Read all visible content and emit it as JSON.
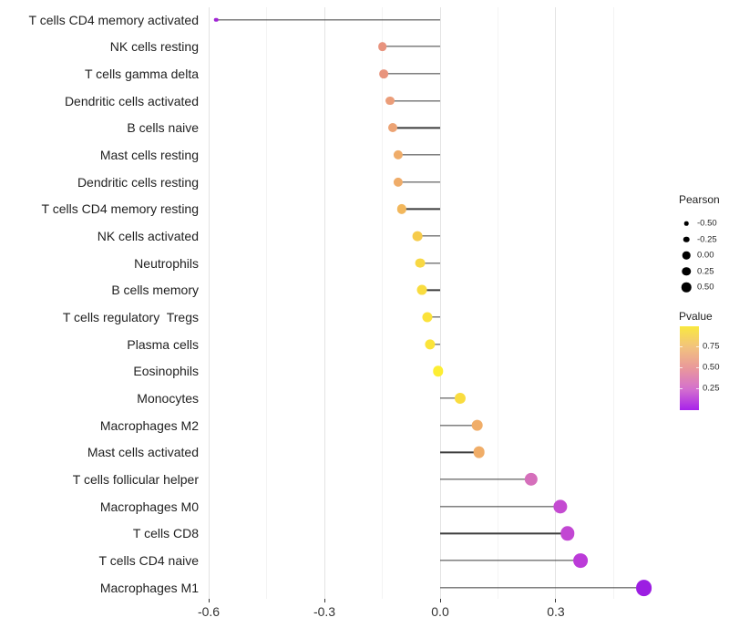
{
  "chart_data": {
    "type": "lollipop",
    "title": "",
    "xlabel": "",
    "ylabel": "",
    "x_tick_labels": [
      "-0.6",
      "-0.3",
      "0.0",
      "0.3"
    ],
    "x_ticks": [
      -0.6,
      -0.3,
      0.0,
      0.3
    ],
    "x_minor_ticks": [
      -0.45,
      -0.15,
      0.15,
      0.45
    ],
    "xlim": [
      -0.635,
      0.585
    ],
    "grid": "vertical-only",
    "legend_position": "right",
    "rows": [
      {
        "label": "T cells CD4 memory activated",
        "pearson": -0.58,
        "pvalue_color": "#A224D6"
      },
      {
        "label": "NK cells resting",
        "pearson": -0.15,
        "pvalue_color": "#E8937E"
      },
      {
        "label": "T cells gamma delta",
        "pearson": -0.147,
        "pvalue_color": "#E8947D"
      },
      {
        "label": "Dendritic cells activated",
        "pearson": -0.13,
        "pvalue_color": "#EB9D79"
      },
      {
        "label": "B cells naive",
        "pearson": -0.124,
        "pvalue_color": "#ECA374"
      },
      {
        "label": "Mast cells resting",
        "pearson": -0.108,
        "pvalue_color": "#EFAC69"
      },
      {
        "label": "Dendritic cells resting",
        "pearson": -0.108,
        "pvalue_color": "#EFAC69"
      },
      {
        "label": "T cells CD4 memory resting",
        "pearson": -0.1,
        "pvalue_color": "#F2B75C"
      },
      {
        "label": "NK cells activated",
        "pearson": -0.059,
        "pvalue_color": "#F6CB4B"
      },
      {
        "label": "Neutrophils",
        "pearson": -0.051,
        "pvalue_color": "#F8D843"
      },
      {
        "label": "B cells memory",
        "pearson": -0.048,
        "pvalue_color": "#F9DC3F"
      },
      {
        "label": "T cells regulatory  Tregs",
        "pearson": -0.034,
        "pvalue_color": "#FBE23A"
      },
      {
        "label": "Plasma cells",
        "pearson": -0.027,
        "pvalue_color": "#FBE43A"
      },
      {
        "label": "Eosinophils",
        "pearson": -0.005,
        "pvalue_color": "#FDEE33"
      },
      {
        "label": "Monocytes",
        "pearson": 0.051,
        "pvalue_color": "#F9DC3F"
      },
      {
        "label": "Macrophages M2",
        "pearson": 0.096,
        "pvalue_color": "#F0AD68"
      },
      {
        "label": "Mast cells activated",
        "pearson": 0.101,
        "pvalue_color": "#F0AD68"
      },
      {
        "label": "T cells follicular helper",
        "pearson": 0.236,
        "pvalue_color": "#D56FBB"
      },
      {
        "label": "Macrophages M0",
        "pearson": 0.312,
        "pvalue_color": "#C44BD1"
      },
      {
        "label": "T cells CD8",
        "pearson": 0.33,
        "pvalue_color": "#C247D3"
      },
      {
        "label": "T cells CD4 naive",
        "pearson": 0.363,
        "pvalue_color": "#BB3BD8"
      },
      {
        "label": "Macrophages M1",
        "pearson": 0.528,
        "pvalue_color": "#9C1EE2"
      }
    ]
  },
  "legend_size": {
    "title": "Pearson",
    "entries": [
      {
        "label": "-0.50",
        "value": -0.5
      },
      {
        "label": "-0.25",
        "value": -0.25
      },
      {
        "label": "0.00",
        "value": 0.0
      },
      {
        "label": "0.25",
        "value": 0.25
      },
      {
        "label": "0.50",
        "value": 0.5
      }
    ],
    "dot_color": "#000000"
  },
  "legend_color": {
    "title": "Pvalue",
    "tick_labels": [
      "0.75",
      "0.50",
      "0.25"
    ],
    "gradient_top_to_bottom": [
      "#F9E83F",
      "#F2C27E",
      "#E9989B",
      "#D470CE",
      "#A722EA"
    ]
  }
}
